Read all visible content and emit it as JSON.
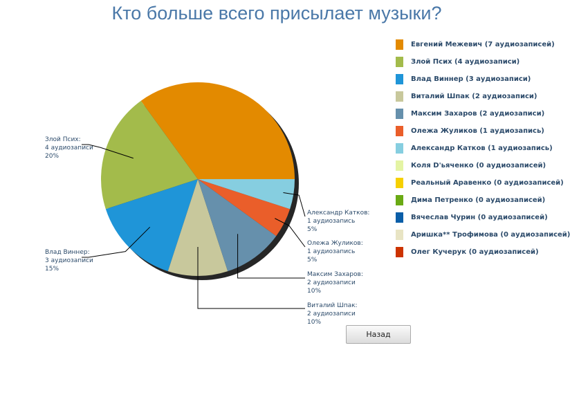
{
  "chart_data": {
    "type": "pie",
    "title": "Кто больше всего присылает музыки?",
    "legend_position": "right",
    "slices": [
      {
        "name": "Евгений Межевич",
        "value": 7,
        "legend": "Евгений Межевич (7 аудиозаписей)",
        "color": "#e38a00"
      },
      {
        "name": "Злой Псих",
        "value": 4,
        "legend": "Злой Псих (4 аудиозаписи)",
        "color": "#a3bb4b",
        "label": [
          "Злой Псих:",
          "4 аудиозаписи",
          "20%"
        ]
      },
      {
        "name": "Влад Виннер",
        "value": 3,
        "legend": "Влад Виннер (3 аудиозаписи)",
        "color": "#1f95d8",
        "label": [
          "Влад Виннер:",
          "3 аудиозаписи",
          "15%"
        ]
      },
      {
        "name": "Виталий Шпак",
        "value": 2,
        "legend": "Виталий Шпак (2 аудиозаписи)",
        "color": "#c8c89c",
        "label": [
          "Виталий Шпак:",
          "2 аудиозаписи",
          "10%"
        ]
      },
      {
        "name": "Максим Захаров",
        "value": 2,
        "legend": "Максим Захаров (2 аудиозаписи)",
        "color": "#6690ac",
        "label": [
          "Максим Захаров:",
          "2 аудиозаписи",
          "10%"
        ]
      },
      {
        "name": "Олежа Жуликов",
        "value": 1,
        "legend": "Олежа Жуликов (1 аудиозапись)",
        "color": "#ea5e2a",
        "label": [
          "Олежа Жуликов:",
          "1 аудиозапись",
          "5%"
        ]
      },
      {
        "name": "Александр Катков",
        "value": 1,
        "legend": "Александр Катков (1 аудиозапись)",
        "color": "#86cee0",
        "label": [
          "Александр Катков:",
          "1 аудиозапись",
          "5%"
        ]
      },
      {
        "name": "Коля D'ьяченко",
        "value": 0,
        "legend": "Коля D'ьяченко (0 аудиозаписей)",
        "color": "#e4f4a4"
      },
      {
        "name": "Реальный Аравенко",
        "value": 0,
        "legend": "Реальный Аравенко (0 аудиозаписей)",
        "color": "#f6d000"
      },
      {
        "name": "Дима Петренко",
        "value": 0,
        "legend": "Дима Петренко (0 аудиозаписей)",
        "color": "#6aaa14"
      },
      {
        "name": "Вячеслав Чурин",
        "value": 0,
        "legend": "Вячеслав Чурин (0 аудиозаписей)",
        "color": "#0a5ea8"
      },
      {
        "name": "Аришка** Трофимова",
        "value": 0,
        "legend": "Аришка** Трофимова (0 аудиозаписей)",
        "color": "#e8e4c4"
      },
      {
        "name": "Олег Кучерук",
        "value": 0,
        "legend": "Олег Кучерук (0 аудиозаписей)",
        "color": "#cc3300"
      }
    ]
  },
  "buttons": {
    "back": "Назад"
  }
}
